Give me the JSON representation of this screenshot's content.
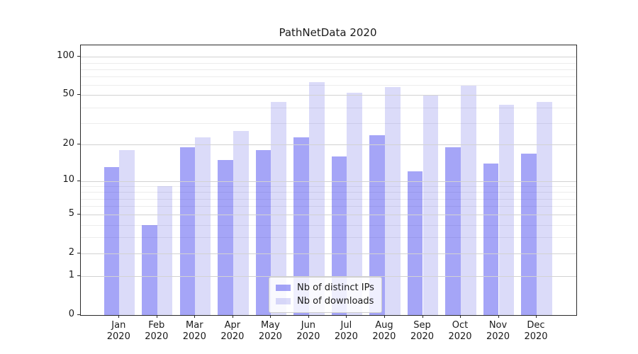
{
  "title": "PathNetData 2020",
  "chart_data": {
    "type": "bar",
    "title": "PathNetData 2020",
    "categories": [
      "Jan",
      "Feb",
      "Mar",
      "Apr",
      "May",
      "Jun",
      "Jul",
      "Aug",
      "Sep",
      "Oct",
      "Nov",
      "Dec"
    ],
    "year_label": "2020",
    "series": [
      {
        "name": "Nb of distinct IPs",
        "color": "rgba(40,40,235,0.42)",
        "solid_color": "#a5a5f6",
        "values": [
          13,
          4,
          19,
          15,
          18,
          23,
          16,
          24,
          12,
          19,
          14,
          17
        ]
      },
      {
        "name": "Nb of downloads",
        "color": "rgba(30,30,215,0.16)",
        "solid_color": "#dbdbf8",
        "values": [
          18,
          9,
          23,
          26,
          44,
          63,
          52,
          58,
          50,
          59,
          42,
          44
        ]
      }
    ],
    "yscale": "symlog (log1p)",
    "yticks": [
      0,
      1,
      2,
      5,
      10,
      20,
      50,
      100
    ],
    "minor_gridlines": [
      3,
      4,
      6,
      7,
      8,
      9,
      30,
      40,
      60,
      70,
      80,
      90
    ],
    "ylim": [
      0,
      123
    ],
    "xlabel": "",
    "ylabel": "",
    "grid": true,
    "legend_position": "lower center"
  }
}
